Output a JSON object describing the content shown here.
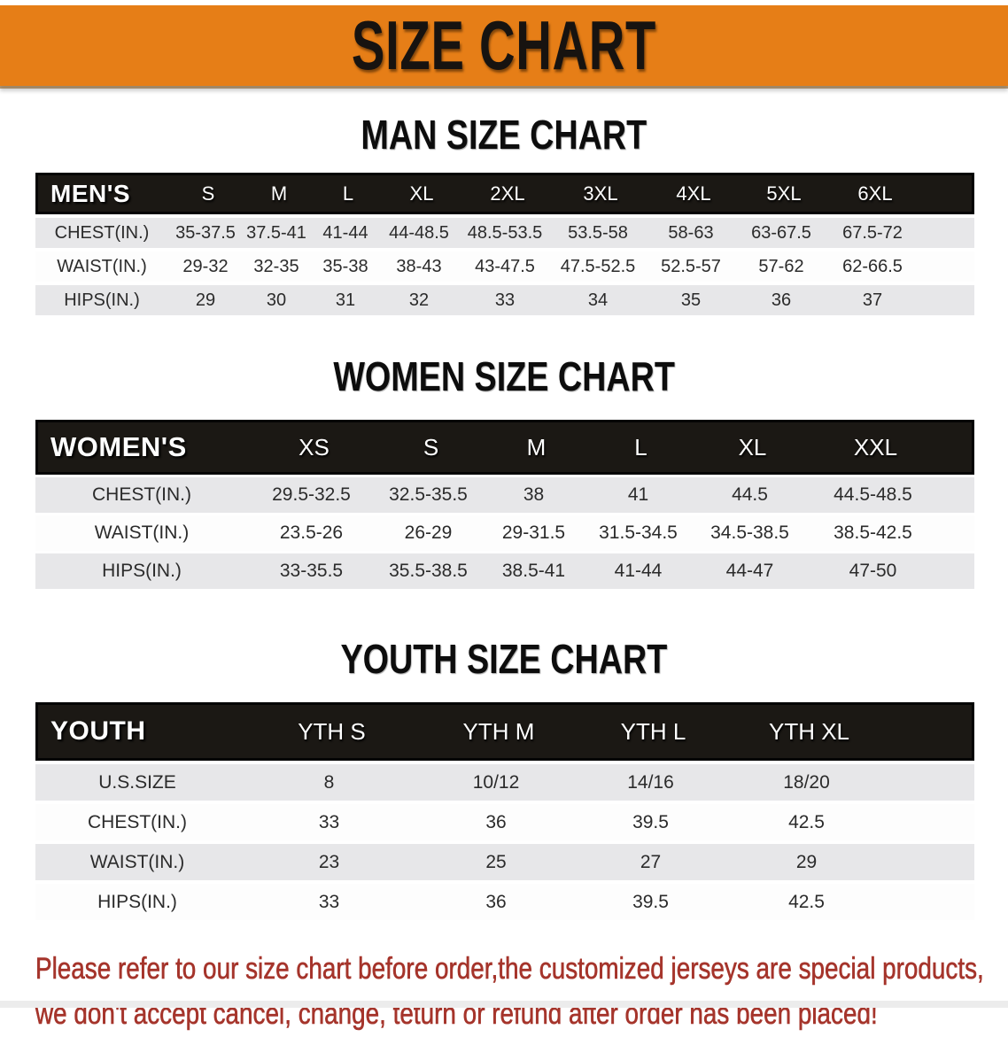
{
  "banner": {
    "title": "SIZE CHART",
    "bg_color": "#E67E17",
    "text_color": "#171310"
  },
  "sections": [
    {
      "heading": "MAN SIZE CHART",
      "table": {
        "name": "MEN'S",
        "sizes": [
          "S",
          "M",
          "L",
          "XL",
          "2XL",
          "3XL",
          "4XL",
          "5XL",
          "6XL"
        ],
        "rows": [
          {
            "label": "CHEST(IN.)",
            "values": [
              "35-37.5",
              "37.5-41",
              "41-44",
              "44-48.5",
              "48.5-53.5",
              "53.5-58",
              "58-63",
              "63-67.5",
              "67.5-72"
            ]
          },
          {
            "label": "WAIST(IN.)",
            "values": [
              "29-32",
              "32-35",
              "35-38",
              "38-43",
              "43-47.5",
              "47.5-52.5",
              "52.5-57",
              "57-62",
              "62-66.5"
            ]
          },
          {
            "label": "HIPS(IN.)",
            "values": [
              "29",
              "30",
              "31",
              "32",
              "33",
              "34",
              "35",
              "36",
              "37"
            ]
          }
        ]
      }
    },
    {
      "heading": "WOMEN SIZE CHART",
      "table": {
        "name": "WOMEN'S",
        "sizes": [
          "XS",
          "S",
          "M",
          "L",
          "XL",
          "XXL"
        ],
        "rows": [
          {
            "label": "CHEST(IN.)",
            "values": [
              "29.5-32.5",
              "32.5-35.5",
              "38",
              "41",
              "44.5",
              "44.5-48.5"
            ]
          },
          {
            "label": "WAIST(IN.)",
            "values": [
              "23.5-26",
              "26-29",
              "29-31.5",
              "31.5-34.5",
              "34.5-38.5",
              "38.5-42.5"
            ]
          },
          {
            "label": "HIPS(IN.)",
            "values": [
              "33-35.5",
              "35.5-38.5",
              "38.5-41",
              "41-44",
              "44-47",
              "47-50"
            ]
          }
        ]
      }
    },
    {
      "heading": "YOUTH SIZE CHART",
      "table": {
        "name": "YOUTH",
        "sizes": [
          "YTH S",
          "YTH M",
          "YTH L",
          "YTH XL"
        ],
        "rows": [
          {
            "label": "U.S.SIZE",
            "values": [
              "8",
              "10/12",
              "14/16",
              "18/20"
            ]
          },
          {
            "label": "CHEST(IN.)",
            "values": [
              "33",
              "36",
              "39.5",
              "42.5"
            ]
          },
          {
            "label": "WAIST(IN.)",
            "values": [
              "23",
              "25",
              "27",
              "29"
            ]
          },
          {
            "label": "HIPS(IN.)",
            "values": [
              "33",
              "36",
              "39.5",
              "42.5"
            ]
          }
        ]
      }
    }
  ],
  "disclaimer": {
    "line1": "Please refer to our size chart before order,the customized jerseys are special products,",
    "line2": "we don't accept cancel, change, teturn or refund after order has been placed!",
    "color": "#A5342B"
  }
}
